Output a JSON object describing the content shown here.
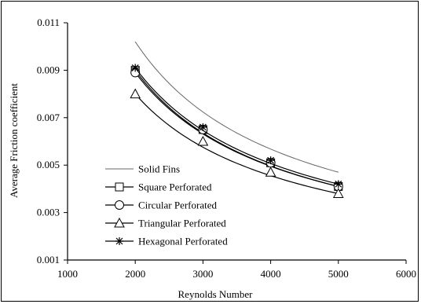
{
  "chart_data": {
    "type": "line",
    "title": "",
    "xlabel": "Reynolds Number",
    "ylabel": "Average Friction coefficient",
    "xlim": [
      1000,
      6000
    ],
    "ylim": [
      0.001,
      0.011
    ],
    "xticks": [
      1000,
      2000,
      3000,
      4000,
      5000,
      6000
    ],
    "yticks": [
      0.001,
      0.003,
      0.005,
      0.007,
      0.009,
      0.011
    ],
    "xtick_labels": [
      "1000",
      "2000",
      "3000",
      "4000",
      "5000",
      "6000"
    ],
    "ytick_labels": [
      "0.001",
      "0.003",
      "0.005",
      "0.007",
      "0.009",
      "0.011"
    ],
    "grid": false,
    "legend_position": "bottom-left",
    "series": [
      {
        "name": "Solid Fins",
        "marker": "none",
        "color": "#666666",
        "x": [
          2000,
          3000,
          4000,
          5000
        ],
        "y": [
          0.0102,
          0.0074,
          0.0058,
          0.0047
        ]
      },
      {
        "name": "Square Perforated",
        "marker": "square",
        "color": "#000000",
        "x": [
          2000,
          3000,
          4000,
          5000
        ],
        "y": [
          0.009,
          0.0065,
          0.0051,
          0.0041
        ]
      },
      {
        "name": "Circular Perforated",
        "marker": "circle",
        "color": "#000000",
        "x": [
          2000,
          3000,
          4000,
          5000
        ],
        "y": [
          0.0089,
          0.0065,
          0.0051,
          0.0041
        ]
      },
      {
        "name": "Triangular Perforated",
        "marker": "triangle",
        "color": "#000000",
        "x": [
          2000,
          3000,
          4000,
          5000
        ],
        "y": [
          0.008,
          0.006,
          0.0047,
          0.0038
        ]
      },
      {
        "name": "Hexagonal Perforated",
        "marker": "star",
        "color": "#000000",
        "x": [
          2000,
          3000,
          4000,
          5000
        ],
        "y": [
          0.0091,
          0.0066,
          0.0052,
          0.0042
        ]
      }
    ]
  }
}
